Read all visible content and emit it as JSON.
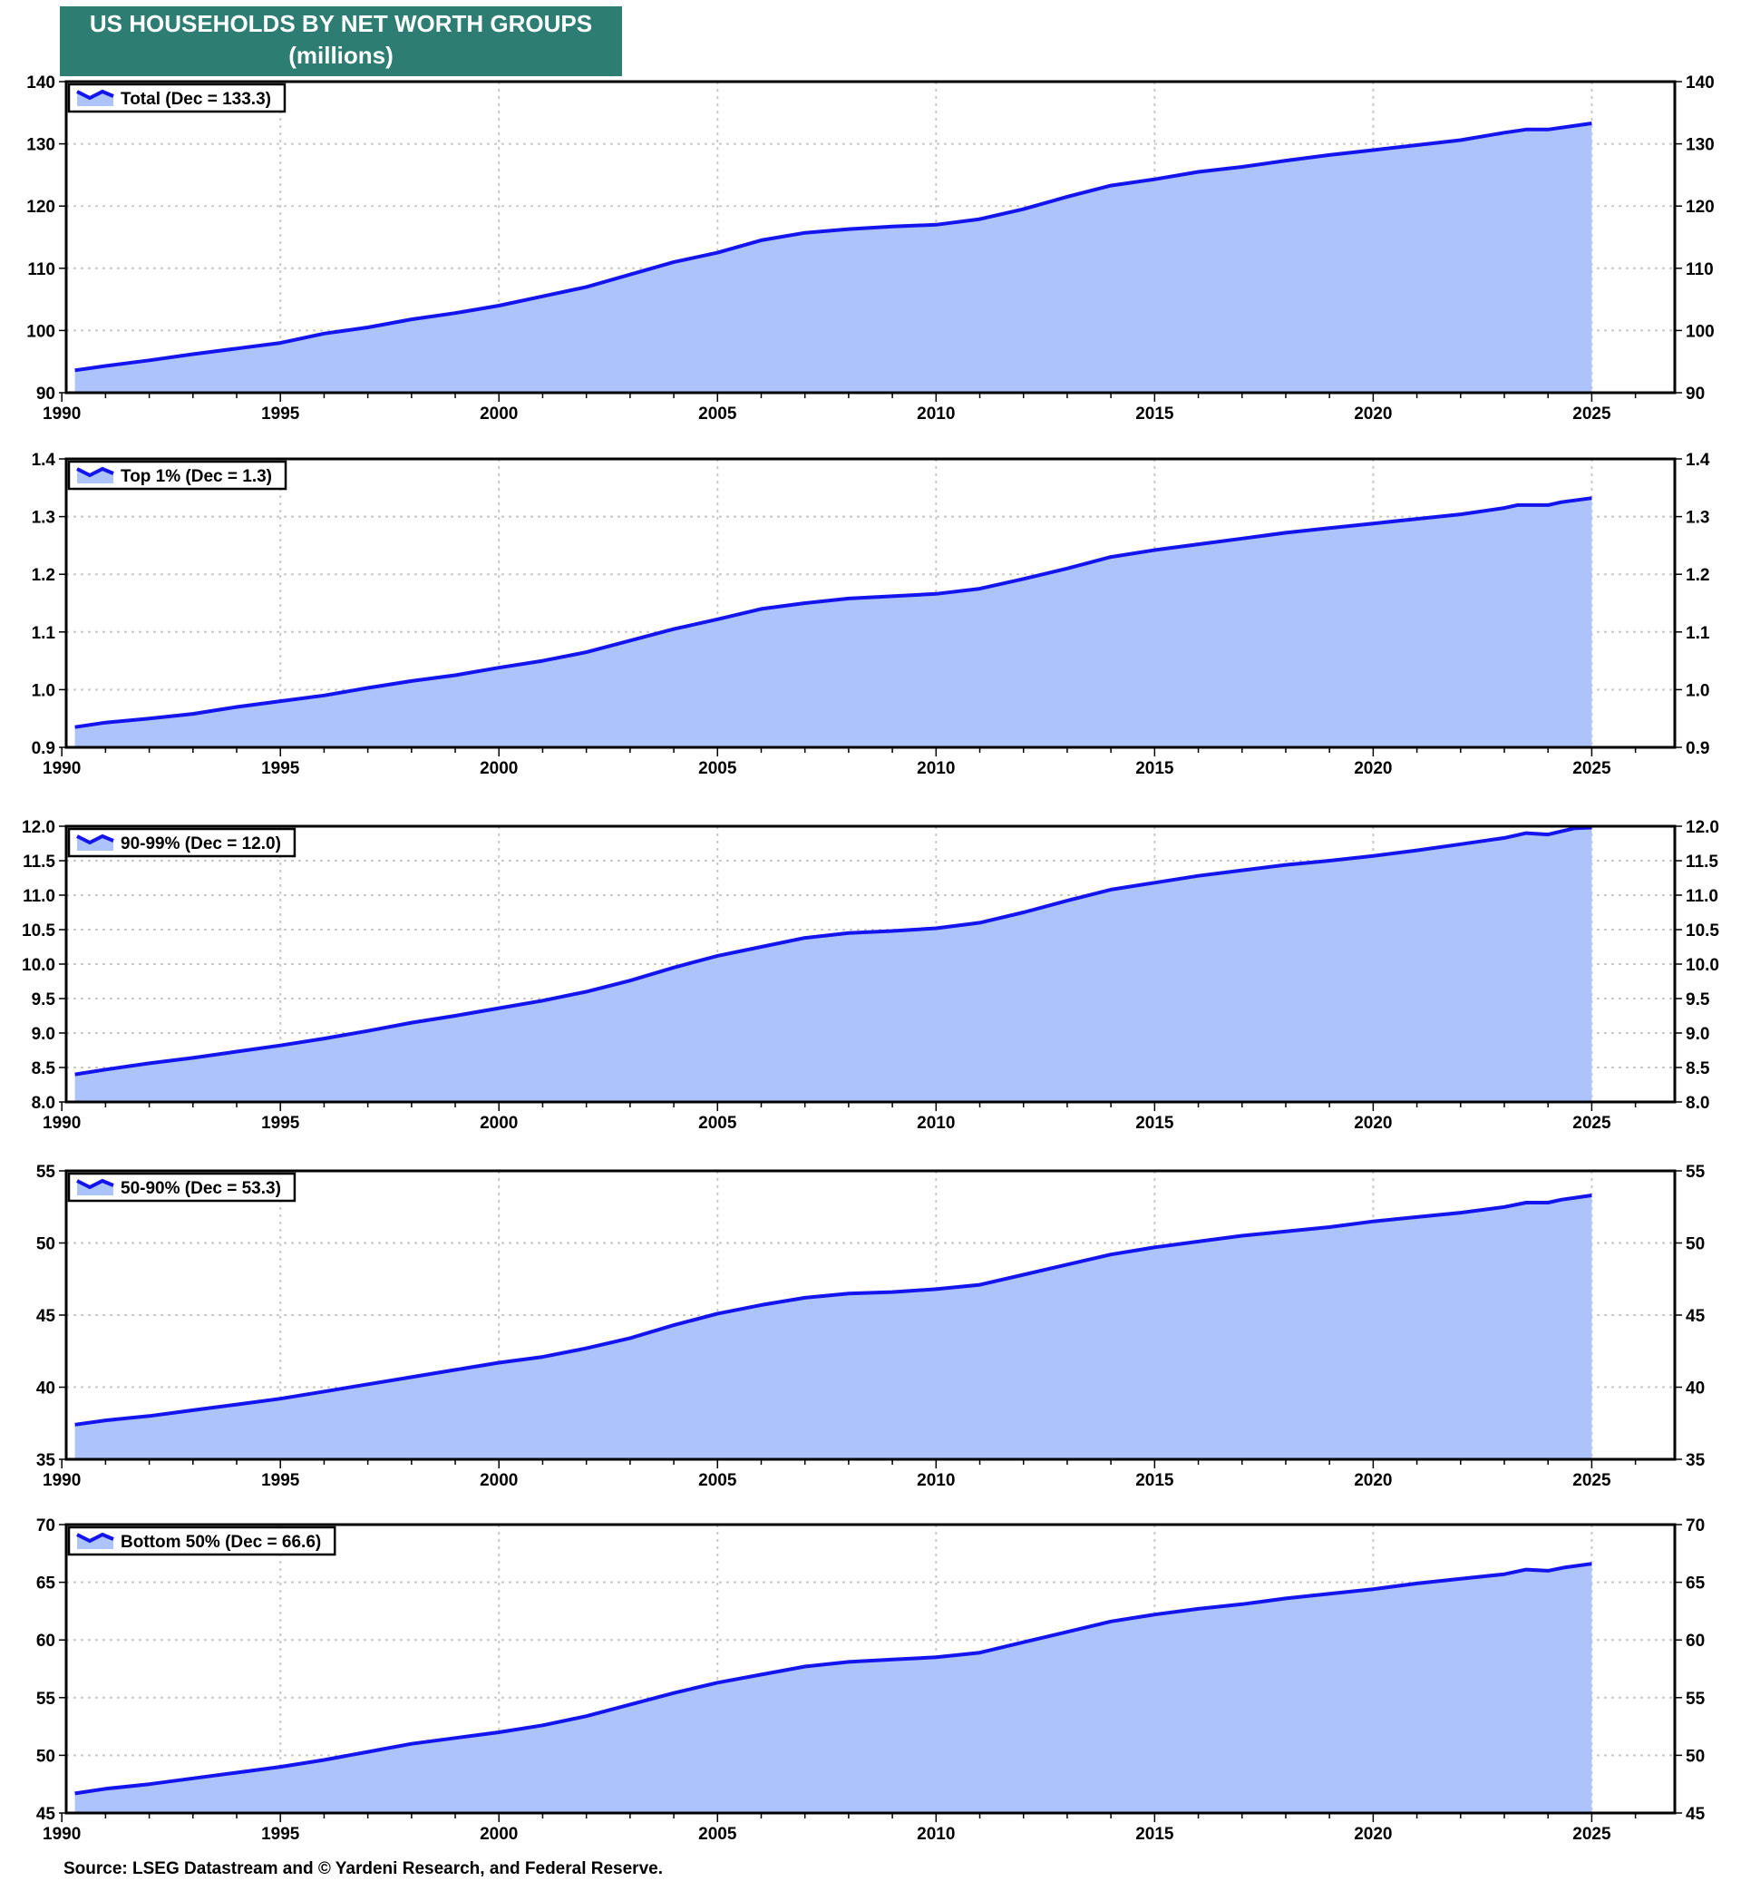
{
  "title": {
    "line1": "US HOUSEHOLDS BY NET WORTH GROUPS",
    "line2": "(millions)"
  },
  "source": "Source: LSEG Datastream and © Yardeni Research, and Federal Reserve.",
  "colors": {
    "title_bg": "#2e7d72",
    "line": "#1414ee",
    "fill": "#adc3fb",
    "grid": "#c8c8c8"
  },
  "chart_data": [
    {
      "type": "area",
      "legend": "Total (Dec = 133.3)",
      "legend_position": "top-left",
      "ylim": [
        90,
        140
      ],
      "yticks": [
        90,
        100,
        110,
        120,
        130,
        140
      ],
      "ytick_decimals": 0,
      "xlim": [
        1990.1,
        2026.9
      ],
      "xticks": [
        1990,
        1995,
        2000,
        2005,
        2010,
        2015,
        2020,
        2025
      ],
      "x": [
        1990.3,
        1991,
        1992,
        1993,
        1994,
        1995,
        1996,
        1997,
        1998,
        1999,
        2000,
        2001,
        2002,
        2003,
        2004,
        2005,
        2006,
        2007,
        2008,
        2009,
        2010,
        2011,
        2012,
        2013,
        2014,
        2015,
        2016,
        2017,
        2018,
        2019,
        2020,
        2021,
        2022,
        2023,
        2023.5,
        2024,
        2025
      ],
      "y": [
        93.6,
        94.3,
        95.2,
        96.2,
        97.1,
        98.0,
        99.5,
        100.5,
        101.8,
        102.8,
        104.0,
        105.5,
        107.0,
        109.0,
        111.0,
        112.5,
        114.5,
        115.7,
        116.3,
        116.7,
        117.0,
        117.9,
        119.5,
        121.5,
        123.3,
        124.3,
        125.5,
        126.3,
        127.3,
        128.2,
        129.0,
        129.8,
        130.6,
        131.8,
        132.3,
        132.3,
        133.3
      ]
    },
    {
      "type": "area",
      "legend": "Top 1% (Dec = 1.3)",
      "legend_position": "top-left",
      "ylim": [
        0.9,
        1.4
      ],
      "yticks": [
        0.9,
        1.0,
        1.1,
        1.2,
        1.3,
        1.4
      ],
      "ytick_decimals": 1,
      "xlim": [
        1990.1,
        2026.9
      ],
      "xticks": [
        1990,
        1995,
        2000,
        2005,
        2010,
        2015,
        2020,
        2025
      ],
      "x": [
        1990.3,
        1991,
        1992,
        1993,
        1994,
        1995,
        1996,
        1997,
        1998,
        1999,
        2000,
        2001,
        2002,
        2003,
        2004,
        2005,
        2006,
        2007,
        2008,
        2009,
        2010,
        2011,
        2012,
        2013,
        2014,
        2015,
        2016,
        2017,
        2018,
        2019,
        2020,
        2021,
        2022,
        2023,
        2023.3,
        2024,
        2024.3,
        2025
      ],
      "y": [
        0.935,
        0.943,
        0.95,
        0.958,
        0.97,
        0.98,
        0.99,
        1.003,
        1.015,
        1.025,
        1.038,
        1.05,
        1.065,
        1.085,
        1.105,
        1.122,
        1.14,
        1.15,
        1.158,
        1.162,
        1.166,
        1.175,
        1.192,
        1.21,
        1.23,
        1.242,
        1.252,
        1.262,
        1.272,
        1.28,
        1.288,
        1.296,
        1.304,
        1.315,
        1.32,
        1.32,
        1.325,
        1.332
      ]
    },
    {
      "type": "area",
      "legend": "90-99% (Dec = 12.0)",
      "legend_position": "top-left",
      "ylim": [
        8.0,
        12.0
      ],
      "yticks": [
        8.0,
        8.5,
        9.0,
        9.5,
        10.0,
        10.5,
        11.0,
        11.5,
        12.0
      ],
      "ytick_decimals": 1,
      "xlim": [
        1990.1,
        2026.9
      ],
      "xticks": [
        1990,
        1995,
        2000,
        2005,
        2010,
        2015,
        2020,
        2025
      ],
      "x": [
        1990.3,
        1991,
        1992,
        1993,
        1994,
        1995,
        1996,
        1997,
        1998,
        1999,
        2000,
        2001,
        2002,
        2003,
        2004,
        2005,
        2006,
        2007,
        2008,
        2009,
        2010,
        2011,
        2012,
        2013,
        2014,
        2015,
        2016,
        2017,
        2018,
        2019,
        2020,
        2021,
        2022,
        2023,
        2023.5,
        2024,
        2024.6,
        2025
      ],
      "y": [
        8.4,
        8.47,
        8.56,
        8.64,
        8.73,
        8.82,
        8.92,
        9.03,
        9.15,
        9.25,
        9.36,
        9.47,
        9.6,
        9.76,
        9.95,
        10.12,
        10.25,
        10.38,
        10.45,
        10.48,
        10.52,
        10.6,
        10.75,
        10.92,
        11.08,
        11.18,
        11.28,
        11.36,
        11.44,
        11.5,
        11.57,
        11.65,
        11.74,
        11.83,
        11.9,
        11.88,
        11.97,
        11.98
      ]
    },
    {
      "type": "area",
      "legend": "50-90% (Dec = 53.3)",
      "legend_position": "top-left",
      "ylim": [
        35,
        55
      ],
      "yticks": [
        35,
        40,
        45,
        50,
        55
      ],
      "ytick_decimals": 0,
      "xlim": [
        1990.1,
        2026.9
      ],
      "xticks": [
        1990,
        1995,
        2000,
        2005,
        2010,
        2015,
        2020,
        2025
      ],
      "x": [
        1990.3,
        1991,
        1992,
        1993,
        1994,
        1995,
        1996,
        1997,
        1998,
        1999,
        2000,
        2001,
        2002,
        2003,
        2004,
        2005,
        2006,
        2007,
        2008,
        2009,
        2010,
        2011,
        2012,
        2013,
        2014,
        2015,
        2016,
        2017,
        2018,
        2019,
        2020,
        2021,
        2022,
        2023,
        2023.5,
        2024,
        2024.3,
        2025
      ],
      "y": [
        37.4,
        37.7,
        38.0,
        38.4,
        38.8,
        39.2,
        39.7,
        40.2,
        40.7,
        41.2,
        41.7,
        42.1,
        42.7,
        43.4,
        44.3,
        45.1,
        45.7,
        46.2,
        46.5,
        46.6,
        46.8,
        47.1,
        47.8,
        48.5,
        49.2,
        49.7,
        50.1,
        50.5,
        50.8,
        51.1,
        51.5,
        51.8,
        52.1,
        52.5,
        52.8,
        52.8,
        53.0,
        53.3
      ]
    },
    {
      "type": "area",
      "legend": "Bottom 50% (Dec = 66.6)",
      "legend_position": "top-left",
      "ylim": [
        45,
        70
      ],
      "yticks": [
        45,
        50,
        55,
        60,
        65,
        70
      ],
      "ytick_decimals": 0,
      "xlim": [
        1990.1,
        2026.9
      ],
      "xticks": [
        1990,
        1995,
        2000,
        2005,
        2010,
        2015,
        2020,
        2025
      ],
      "x": [
        1990.3,
        1991,
        1992,
        1993,
        1994,
        1995,
        1996,
        1997,
        1998,
        1999,
        2000,
        2001,
        2002,
        2003,
        2004,
        2005,
        2006,
        2007,
        2008,
        2009,
        2010,
        2011,
        2012,
        2013,
        2014,
        2015,
        2016,
        2017,
        2018,
        2019,
        2020,
        2021,
        2022,
        2023,
        2023.5,
        2024,
        2024.4,
        2025
      ],
      "y": [
        46.7,
        47.1,
        47.5,
        48.0,
        48.5,
        49.0,
        49.6,
        50.3,
        51.0,
        51.5,
        52.0,
        52.6,
        53.4,
        54.4,
        55.4,
        56.3,
        57.0,
        57.7,
        58.1,
        58.3,
        58.5,
        58.9,
        59.8,
        60.7,
        61.6,
        62.2,
        62.7,
        63.1,
        63.6,
        64.0,
        64.4,
        64.9,
        65.3,
        65.7,
        66.1,
        66.0,
        66.3,
        66.6
      ]
    }
  ]
}
